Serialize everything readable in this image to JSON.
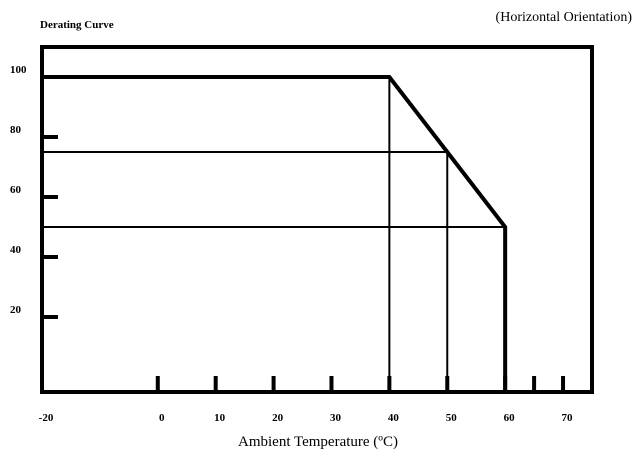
{
  "chart_data": {
    "type": "line",
    "title": "Derating Curve",
    "subtitle": "(Horizontal Orientation)",
    "xlabel": "Ambient Temperature  (ºC)",
    "ylabel": "",
    "x_ticks": [
      "-20",
      "0",
      "10",
      "20",
      "30",
      "40",
      "50",
      "60",
      "70"
    ],
    "x_tick_values": [
      -20,
      0,
      10,
      20,
      30,
      40,
      50,
      60,
      70
    ],
    "y_ticks": [
      "20",
      "40",
      "60",
      "80",
      "100"
    ],
    "y_tick_values": [
      20,
      40,
      60,
      80,
      100
    ],
    "extra_x_tick_marks": [
      65
    ],
    "xlim": [
      -20,
      75
    ],
    "ylim": [
      -5,
      110
    ],
    "series": [
      {
        "x": [
          -20,
          40,
          50,
          60,
          60
        ],
        "y": [
          100,
          100,
          75,
          50,
          -5
        ]
      }
    ],
    "guides": [
      {
        "x": [
          -20,
          50
        ],
        "y": [
          75,
          75
        ]
      },
      {
        "x": [
          -20,
          60
        ],
        "y": [
          50,
          50
        ]
      },
      {
        "x": [
          40,
          40
        ],
        "y": [
          100,
          -5
        ]
      },
      {
        "x": [
          50,
          50
        ],
        "y": [
          75,
          -5
        ]
      }
    ],
    "grid": false
  }
}
